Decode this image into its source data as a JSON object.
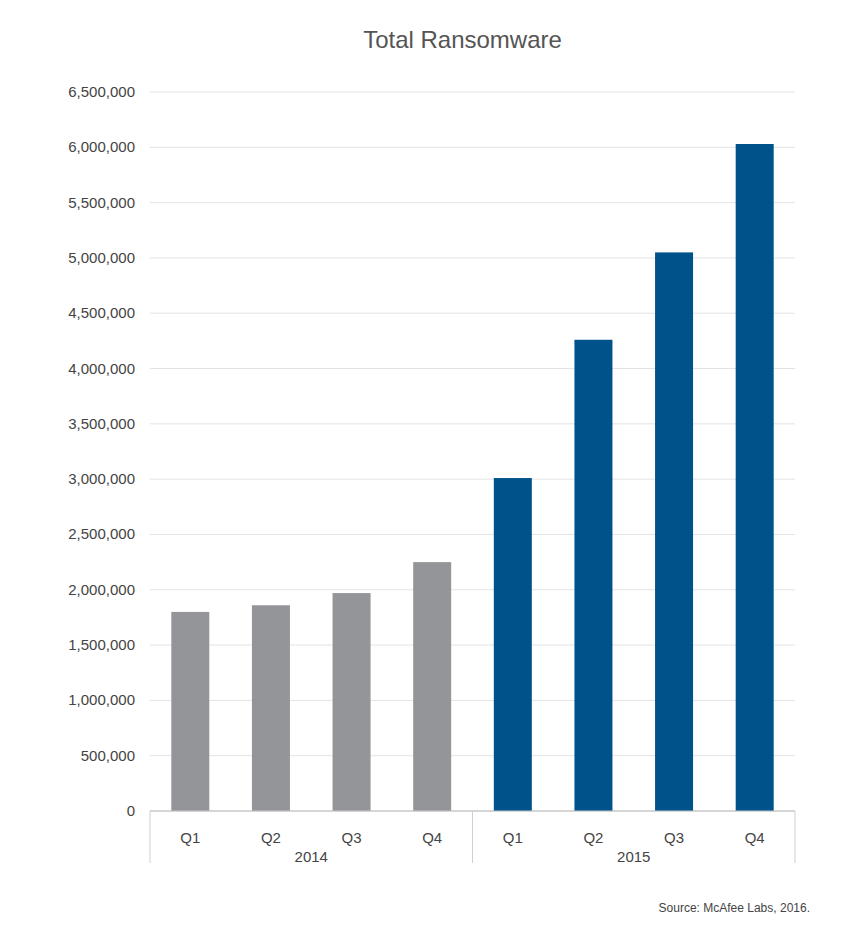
{
  "chart_data": {
    "type": "bar",
    "title": "Total Ransomware",
    "source": "Source: McAfee Labs, 2016.",
    "categories": [
      "Q1",
      "Q2",
      "Q3",
      "Q4",
      "Q1",
      "Q2",
      "Q3",
      "Q4"
    ],
    "category_groups": [
      {
        "label": "2014",
        "size": 4
      },
      {
        "label": "2015",
        "size": 4
      }
    ],
    "values": [
      1800000,
      1860000,
      1970000,
      2250000,
      3010000,
      4260000,
      5050000,
      6030000
    ],
    "colors": [
      "#939598",
      "#939598",
      "#939598",
      "#939598",
      "#00538a",
      "#00538a",
      "#00538a",
      "#00538a"
    ],
    "ylim": [
      0,
      6500000
    ],
    "yticks": [
      0,
      {
        "value": 500000,
        "label": "500,000"
      },
      {
        "value": 1000000,
        "label": "1,000,000"
      },
      {
        "value": 1500000,
        "label": "1,500,000"
      },
      {
        "value": 2000000,
        "label": "2,000,000"
      },
      {
        "value": 2500000,
        "label": "2,500,000"
      },
      {
        "value": 3000000,
        "label": "3,000,000"
      },
      {
        "value": 3500000,
        "label": "3,500,000"
      },
      {
        "value": 4000000,
        "label": "4,000,000"
      },
      {
        "value": 4500000,
        "label": "4,500,000"
      },
      {
        "value": 5000000,
        "label": "5,000,000"
      },
      {
        "value": 5500000,
        "label": "5,500,000"
      },
      {
        "value": 6000000,
        "label": "6,000,000"
      },
      {
        "value": 6500000,
        "label": "6,500,000"
      }
    ],
    "grid": true
  }
}
